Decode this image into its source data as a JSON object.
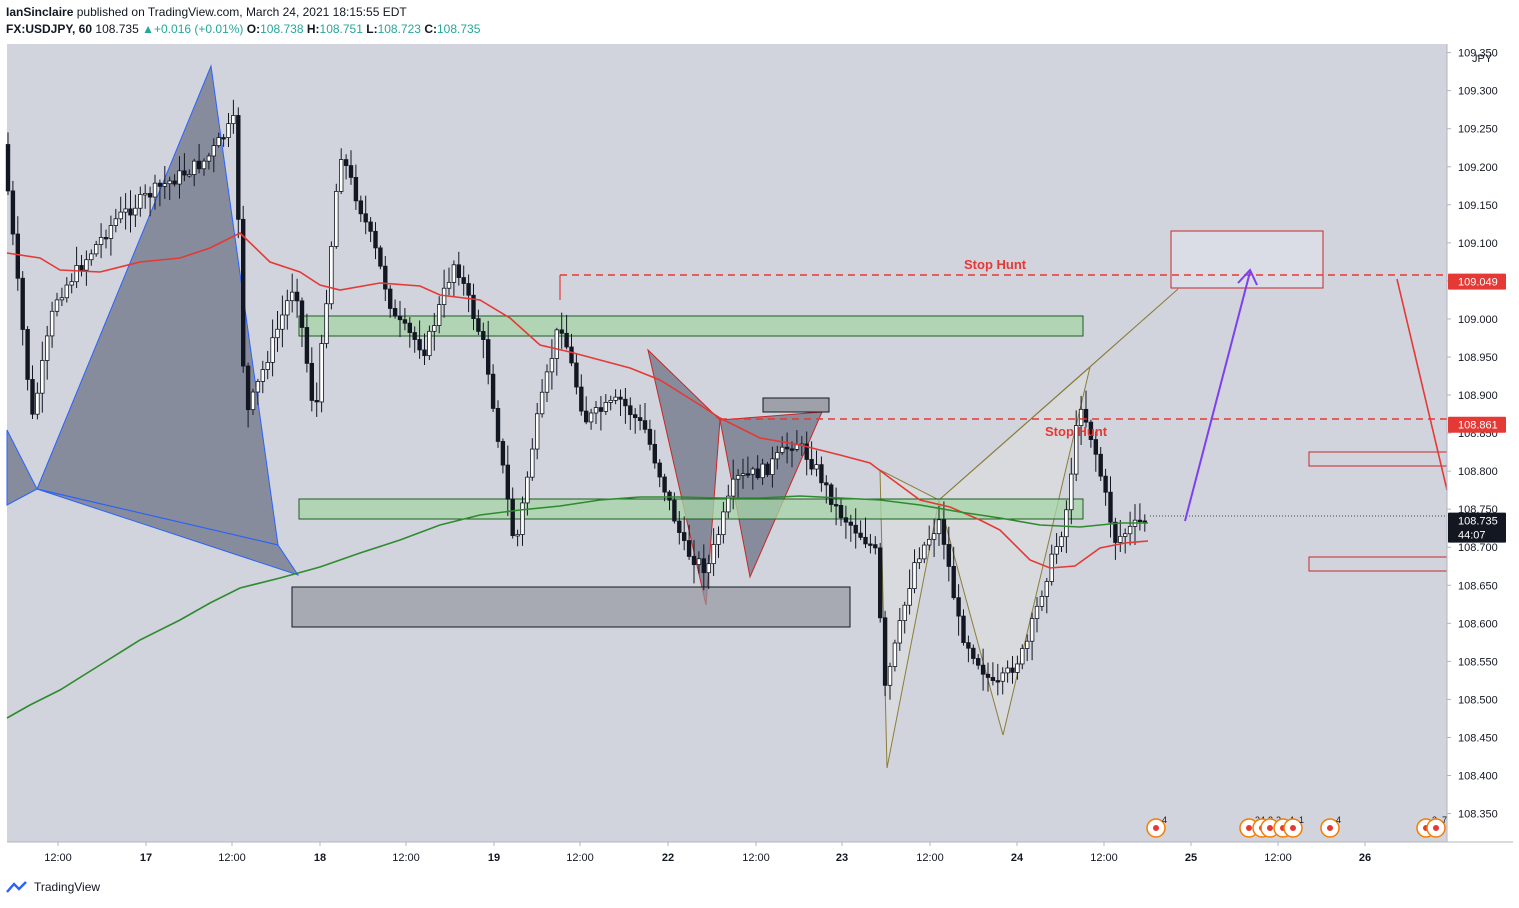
{
  "header": {
    "author": "IanSinclaire",
    "published_text": "published on TradingView.com, March 24, 2021 18:15:55 EDT",
    "symbol": "FX:USDJPY, 60",
    "last": "108.735",
    "change": "+0.016 (+0.01%)",
    "open_label": "O:",
    "open": "108.738",
    "high_label": "H:",
    "high": "108.751",
    "low_label": "L:",
    "low": "108.723",
    "close_label": "C:",
    "close": "108.735"
  },
  "footer": {
    "brand": "TradingView"
  },
  "colors": {
    "background": "#d1d4dc",
    "ema_fast": "#e53935",
    "ema_slow": "#2e8b2e",
    "price_tag": "#131722",
    "level_tag": "#e53935"
  },
  "chart_data": {
    "type": "candlestick",
    "instrument": "USDJPY",
    "timeframe": "60",
    "currency_label": "JPY",
    "ylim": [
      108.3,
      109.36
    ],
    "y_ticks": [
      "109.350",
      "109.300",
      "109.250",
      "109.200",
      "109.150",
      "109.100",
      "109.050",
      "109.000",
      "108.950",
      "108.900",
      "108.850",
      "108.800",
      "108.750",
      "108.700",
      "108.650",
      "108.600",
      "108.550",
      "108.500",
      "108.450",
      "108.400",
      "108.350"
    ],
    "x_ticks": [
      "12:00",
      "17",
      "12:00",
      "18",
      "12:00",
      "19",
      "12:00",
      "22",
      "12:00",
      "23",
      "12:00",
      "24",
      "12:00",
      "25",
      "12:00",
      "26"
    ],
    "price_tag": {
      "value": "108.735",
      "countdown": "44:07"
    },
    "levels": [
      {
        "value": "109.049",
        "label": "Stop Hunt"
      },
      {
        "value": "108.861",
        "label": "Stop Hunt"
      }
    ],
    "event_badges": [
      "4",
      "34",
      "2",
      "2",
      "4",
      "1",
      "4",
      "3",
      "7"
    ],
    "series": [
      {
        "type": "ema"
      },
      {
        "type": "ema"
      }
    ]
  }
}
